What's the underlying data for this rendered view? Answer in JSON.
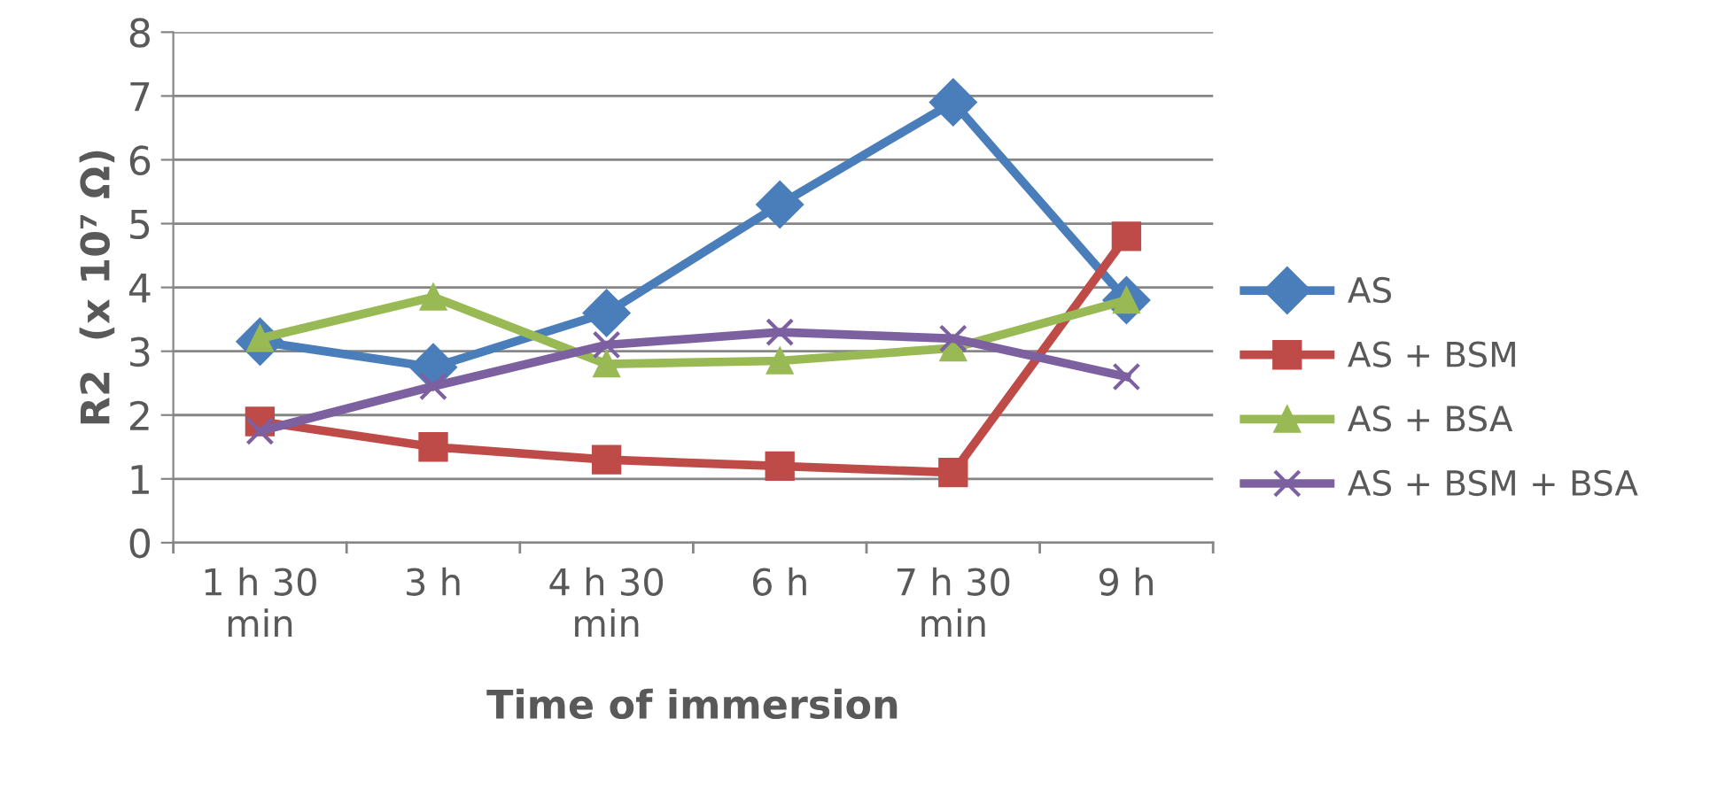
{
  "chart_data": {
    "type": "line",
    "xlabel": "Time of immersion",
    "ylabel": "R2  (x 10⁷ Ω)",
    "categories": [
      "1 h 30\nmin",
      "3 h",
      "4 h 30\nmin",
      "6 h",
      "7 h 30\nmin",
      "9 h"
    ],
    "ylim": [
      0,
      8
    ],
    "yticks": [
      0,
      1,
      2,
      3,
      4,
      5,
      6,
      7,
      8
    ],
    "grid": "y",
    "legend": "right",
    "line_style": "solid",
    "series": [
      {
        "name": "AS",
        "color": "#4a7ebb",
        "marker": "diamond",
        "values": [
          3.15,
          2.75,
          3.6,
          5.3,
          6.9,
          3.8
        ]
      },
      {
        "name": "AS + BSM",
        "color": "#be4b48",
        "marker": "square",
        "values": [
          1.9,
          1.5,
          1.3,
          1.2,
          1.1,
          4.8
        ]
      },
      {
        "name": "AS + BSA",
        "color": "#98b954",
        "marker": "triangle",
        "values": [
          3.2,
          3.85,
          2.8,
          2.85,
          3.05,
          3.8
        ]
      },
      {
        "name": "AS + BSM + BSA",
        "color": "#7d60a0",
        "marker": "cross",
        "values": [
          1.75,
          2.45,
          3.1,
          3.3,
          3.2,
          2.6
        ]
      }
    ]
  }
}
